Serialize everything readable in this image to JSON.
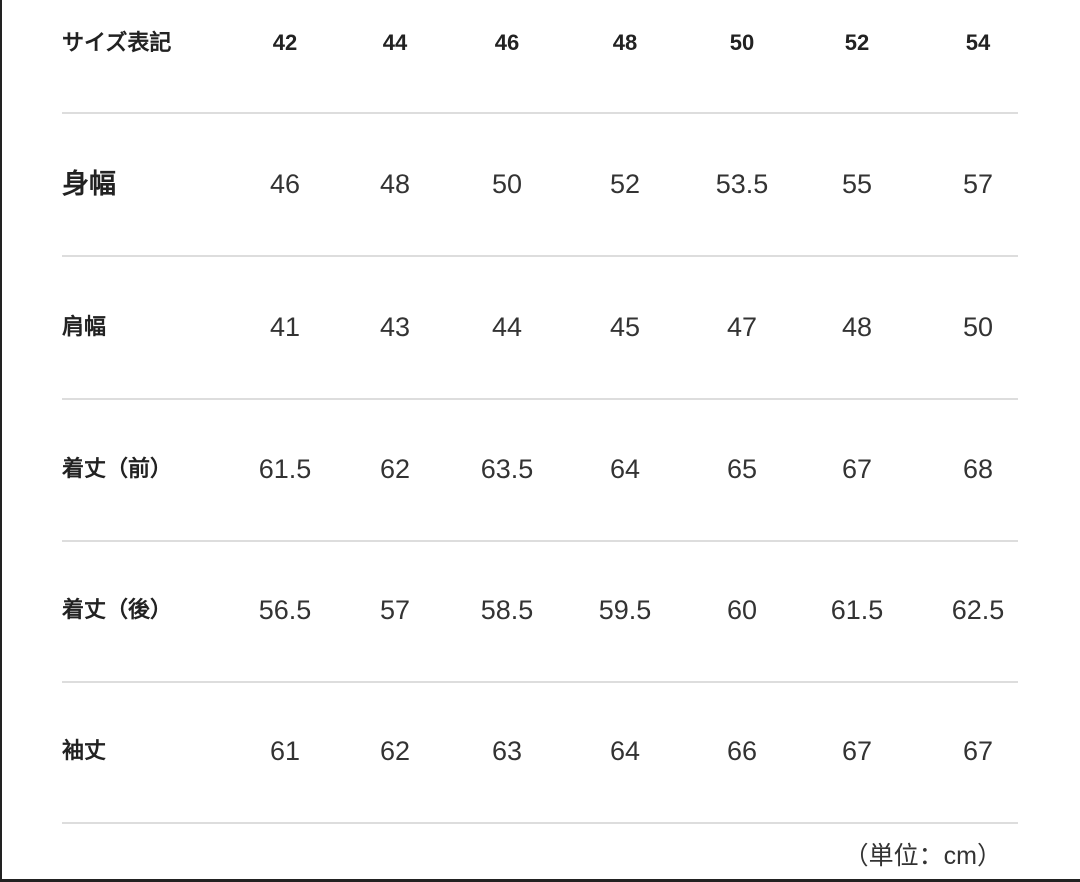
{
  "table": {
    "header": {
      "label": "サイズ表記",
      "sizes": [
        "42",
        "44",
        "46",
        "48",
        "50",
        "52",
        "54"
      ]
    },
    "rows": [
      {
        "label": "身幅",
        "values": [
          "46",
          "48",
          "50",
          "52",
          "53.5",
          "55",
          "57"
        ]
      },
      {
        "label": "肩幅",
        "values": [
          "41",
          "43",
          "44",
          "45",
          "47",
          "48",
          "50"
        ]
      },
      {
        "label": "着丈（前）",
        "values": [
          "61.5",
          "62",
          "63.5",
          "64",
          "65",
          "67",
          "68"
        ]
      },
      {
        "label": "着丈（後）",
        "values": [
          "56.5",
          "57",
          "58.5",
          "59.5",
          "60",
          "61.5",
          "62.5"
        ]
      },
      {
        "label": "袖丈",
        "values": [
          "61",
          "62",
          "63",
          "64",
          "66",
          "67",
          "67"
        ]
      }
    ]
  },
  "unit_note": "（単位：cm）"
}
